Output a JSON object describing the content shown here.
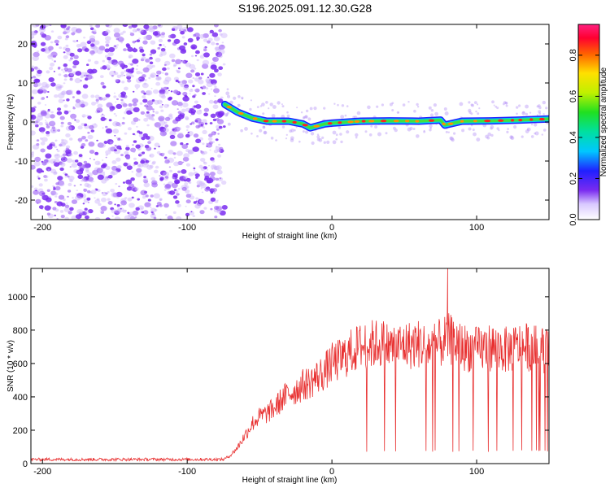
{
  "title": "S196.2025.091.12.30.G28",
  "colors": {
    "noise": "#7a2bf0",
    "trace": "#e8292a",
    "snr_line": "#e83030"
  },
  "chart_data": [
    {
      "type": "heatmap",
      "xlabel": "Height of straight line (km)",
      "ylabel": "Frequency (Hz)",
      "xlim": [
        -208,
        150
      ],
      "ylim": [
        -25,
        25
      ],
      "xticks": [
        -200,
        -100,
        0,
        100
      ],
      "yticks": [
        -20,
        -10,
        0,
        10,
        20
      ],
      "colorbar": {
        "label": "Normalized spectral amplitude",
        "range": [
          0.0,
          0.95
        ],
        "ticks": [
          0.0,
          0.2,
          0.4,
          0.6,
          0.8
        ]
      },
      "noise_region_km": [
        -208,
        -74
      ],
      "signal_trace": [
        {
          "x": -74,
          "y": 4.5
        },
        {
          "x": -65,
          "y": 2.5
        },
        {
          "x": -55,
          "y": 1.0
        },
        {
          "x": -45,
          "y": 0.2
        },
        {
          "x": -30,
          "y": 0.2
        },
        {
          "x": -20,
          "y": -0.5
        },
        {
          "x": -15,
          "y": -1.5
        },
        {
          "x": -5,
          "y": -0.5
        },
        {
          "x": 0,
          "y": -0.3
        },
        {
          "x": 20,
          "y": 0.2
        },
        {
          "x": 40,
          "y": 0.3
        },
        {
          "x": 60,
          "y": 0.2
        },
        {
          "x": 75,
          "y": 0.5
        },
        {
          "x": 78,
          "y": -0.8
        },
        {
          "x": 90,
          "y": 0.2
        },
        {
          "x": 110,
          "y": 0.3
        },
        {
          "x": 130,
          "y": 0.5
        },
        {
          "x": 150,
          "y": 0.8
        }
      ]
    },
    {
      "type": "line",
      "xlabel": "Height of straight line (km)",
      "ylabel": "SNR (10 * v/v)",
      "xlim": [
        -208,
        150
      ],
      "ylim": [
        0,
        1170
      ],
      "xticks": [
        -200,
        -100,
        0,
        100
      ],
      "yticks": [
        0,
        200,
        400,
        600,
        800,
        1000
      ],
      "series": [
        {
          "x": [
            -208,
            -190,
            -170,
            -150,
            -130,
            -110,
            -90,
            -80,
            -75,
            -70,
            -65,
            -60,
            -55,
            -50,
            -45,
            -40,
            -35,
            -30,
            -25,
            -20,
            -15,
            -10,
            -5,
            0,
            5,
            10,
            15,
            20,
            25,
            30,
            35,
            40,
            45,
            50,
            55,
            60,
            65,
            70,
            75,
            80,
            85,
            90,
            95,
            100,
            105,
            110,
            115,
            120,
            125,
            130,
            135,
            140,
            145,
            150
          ],
          "y": [
            25,
            25,
            25,
            25,
            25,
            25,
            25,
            25,
            25,
            50,
            100,
            170,
            240,
            280,
            300,
            330,
            380,
            420,
            440,
            470,
            490,
            520,
            550,
            600,
            620,
            650,
            680,
            700,
            710,
            720,
            720,
            700,
            700,
            710,
            710,
            720,
            700,
            700,
            720,
            750,
            730,
            700,
            690,
            680,
            690,
            700,
            690,
            680,
            690,
            700,
            700,
            690,
            680,
            690
          ]
        }
      ],
      "annotations": {
        "max_peak": {
          "x": 80,
          "y": 1170
        },
        "dropouts_level": 70
      }
    }
  ]
}
